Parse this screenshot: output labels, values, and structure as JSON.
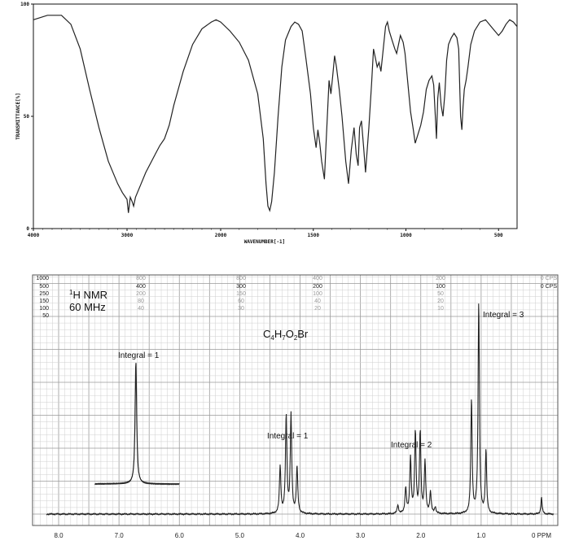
{
  "chart_data": [
    {
      "type": "line",
      "ylabel": "TRANSMITTANCE[%]",
      "xlabel": "WAVENUMBER[-1]",
      "xlim": [
        4000,
        400
      ],
      "ylim": [
        0,
        100
      ],
      "x_ticks": [
        "4000",
        "3000",
        "2000",
        "1500",
        "1000",
        "500"
      ],
      "y_ticks": [
        "100",
        "50",
        "0"
      ],
      "series": [
        {
          "points": [
            [
              4000,
              93
            ],
            [
              3850,
              95
            ],
            [
              3700,
              95
            ],
            [
              3600,
              91
            ],
            [
              3500,
              80
            ],
            [
              3400,
              62
            ],
            [
              3300,
              45
            ],
            [
              3200,
              30
            ],
            [
              3100,
              20
            ],
            [
              3050,
              16
            ],
            [
              3000,
              13
            ],
            [
              2985,
              7
            ],
            [
              2965,
              14
            ],
            [
              2945,
              12
            ],
            [
              2930,
              10
            ],
            [
              2910,
              14
            ],
            [
              2850,
              20
            ],
            [
              2800,
              25
            ],
            [
              2700,
              33
            ],
            [
              2650,
              37
            ],
            [
              2600,
              40
            ],
            [
              2550,
              46
            ],
            [
              2500,
              55
            ],
            [
              2400,
              70
            ],
            [
              2300,
              82
            ],
            [
              2200,
              89
            ],
            [
              2100,
              92
            ],
            [
              2050,
              93
            ],
            [
              2000,
              92
            ],
            [
              1950,
              88
            ],
            [
              1900,
              83
            ],
            [
              1850,
              75
            ],
            [
              1800,
              60
            ],
            [
              1770,
              40
            ],
            [
              1755,
              20
            ],
            [
              1745,
              10
            ],
            [
              1735,
              8
            ],
            [
              1725,
              12
            ],
            [
              1710,
              25
            ],
            [
              1690,
              50
            ],
            [
              1670,
              72
            ],
            [
              1650,
              84
            ],
            [
              1620,
              90
            ],
            [
              1600,
              92
            ],
            [
              1580,
              91
            ],
            [
              1560,
              88
            ],
            [
              1540,
              76
            ],
            [
              1515,
              60
            ],
            [
              1500,
              45
            ],
            [
              1485,
              36
            ],
            [
              1475,
              44
            ],
            [
              1465,
              38
            ],
            [
              1455,
              30
            ],
            [
              1440,
              22
            ],
            [
              1430,
              40
            ],
            [
              1415,
              66
            ],
            [
              1405,
              60
            ],
            [
              1395,
              68
            ],
            [
              1385,
              77
            ],
            [
              1375,
              72
            ],
            [
              1360,
              62
            ],
            [
              1345,
              50
            ],
            [
              1325,
              30
            ],
            [
              1310,
              20
            ],
            [
              1295,
              35
            ],
            [
              1280,
              45
            ],
            [
              1268,
              33
            ],
            [
              1258,
              28
            ],
            [
              1250,
              45
            ],
            [
              1240,
              48
            ],
            [
              1228,
              36
            ],
            [
              1218,
              25
            ],
            [
              1200,
              45
            ],
            [
              1185,
              65
            ],
            [
              1175,
              80
            ],
            [
              1165,
              76
            ],
            [
              1155,
              72
            ],
            [
              1145,
              74
            ],
            [
              1135,
              70
            ],
            [
              1125,
              78
            ],
            [
              1110,
              90
            ],
            [
              1100,
              92
            ],
            [
              1090,
              88
            ],
            [
              1075,
              84
            ],
            [
              1060,
              80
            ],
            [
              1050,
              78
            ],
            [
              1040,
              82
            ],
            [
              1030,
              86
            ],
            [
              1015,
              83
            ],
            [
              1005,
              78
            ],
            [
              990,
              65
            ],
            [
              975,
              52
            ],
            [
              960,
              44
            ],
            [
              950,
              38
            ],
            [
              935,
              42
            ],
            [
              920,
              46
            ],
            [
              905,
              52
            ],
            [
              890,
              62
            ],
            [
              875,
              66
            ],
            [
              860,
              68
            ],
            [
              850,
              64
            ],
            [
              840,
              48
            ],
            [
              835,
              40
            ],
            [
              828,
              58
            ],
            [
              820,
              65
            ],
            [
              810,
              55
            ],
            [
              800,
              50
            ],
            [
              790,
              60
            ],
            [
              780,
              75
            ],
            [
              770,
              82
            ],
            [
              755,
              85
            ],
            [
              740,
              87
            ],
            [
              725,
              85
            ],
            [
              715,
              80
            ],
            [
              705,
              50
            ],
            [
              698,
              44
            ],
            [
              692,
              54
            ],
            [
              685,
              62
            ],
            [
              675,
              66
            ],
            [
              665,
              72
            ],
            [
              650,
              82
            ],
            [
              630,
              88
            ],
            [
              600,
              92
            ],
            [
              570,
              93
            ],
            [
              540,
              90
            ],
            [
              520,
              88
            ],
            [
              500,
              86
            ],
            [
              480,
              88
            ],
            [
              460,
              91
            ],
            [
              440,
              93
            ],
            [
              420,
              92
            ],
            [
              400,
              90
            ]
          ]
        }
      ],
      "grid": false
    },
    {
      "type": "line",
      "xlabel": "PPM",
      "xlim": [
        8.2,
        -0.2
      ],
      "x_ticks": [
        "8.0",
        "7.0",
        "6.0",
        "5.0",
        "4.0",
        "3.0",
        "2.0",
        "1.0",
        "0 PPM"
      ],
      "grid": true,
      "annotations": {
        "nucleus_label": "1",
        "nucleus_rest": "H NMR",
        "frequency": "60 MHz",
        "formula_parts": [
          "C",
          "4",
          "H",
          "7",
          "O",
          "2",
          "Br"
        ],
        "integral_inset": "Integral = 1",
        "integral_q": "Integral = 1",
        "integral_m": "Integral = 2",
        "integral_t": "Integral = 3"
      },
      "scale_left": [
        "1000",
        "500",
        "250",
        "150",
        "100",
        "50"
      ],
      "scale_rows": [
        [
          "800",
          "400",
          "200",
          "80",
          "40"
        ],
        [
          "800",
          "300",
          "150",
          "60",
          "30"
        ],
        [
          "400",
          "200",
          "100",
          "40",
          "20"
        ],
        [
          "200",
          "100",
          "50",
          "20",
          "10"
        ]
      ],
      "scale_right": [
        "0 CPS",
        "0 CPS"
      ],
      "peaks": [
        {
          "ppm": 6.72,
          "height": 0.83,
          "width": 0.016,
          "inset": true
        },
        {
          "ppm": 4.33,
          "height": 0.22,
          "width": 0.014
        },
        {
          "ppm": 4.23,
          "height": 0.46,
          "width": 0.014
        },
        {
          "ppm": 4.15,
          "height": 0.46,
          "width": 0.014
        },
        {
          "ppm": 4.05,
          "height": 0.22,
          "width": 0.014
        },
        {
          "ppm": 2.38,
          "height": 0.04,
          "width": 0.014
        },
        {
          "ppm": 2.25,
          "height": 0.12,
          "width": 0.014
        },
        {
          "ppm": 2.17,
          "height": 0.26,
          "width": 0.014
        },
        {
          "ppm": 2.09,
          "height": 0.38,
          "width": 0.014
        },
        {
          "ppm": 2.01,
          "height": 0.38,
          "width": 0.014
        },
        {
          "ppm": 1.93,
          "height": 0.24,
          "width": 0.014
        },
        {
          "ppm": 1.84,
          "height": 0.1,
          "width": 0.014
        },
        {
          "ppm": 1.76,
          "height": 0.03,
          "width": 0.014
        },
        {
          "ppm": 1.16,
          "height": 0.54,
          "width": 0.013
        },
        {
          "ppm": 1.04,
          "height": 1.0,
          "width": 0.013
        },
        {
          "ppm": 0.92,
          "height": 0.3,
          "width": 0.013
        },
        {
          "ppm": 0.0,
          "height": 0.08,
          "width": 0.012
        }
      ]
    }
  ]
}
